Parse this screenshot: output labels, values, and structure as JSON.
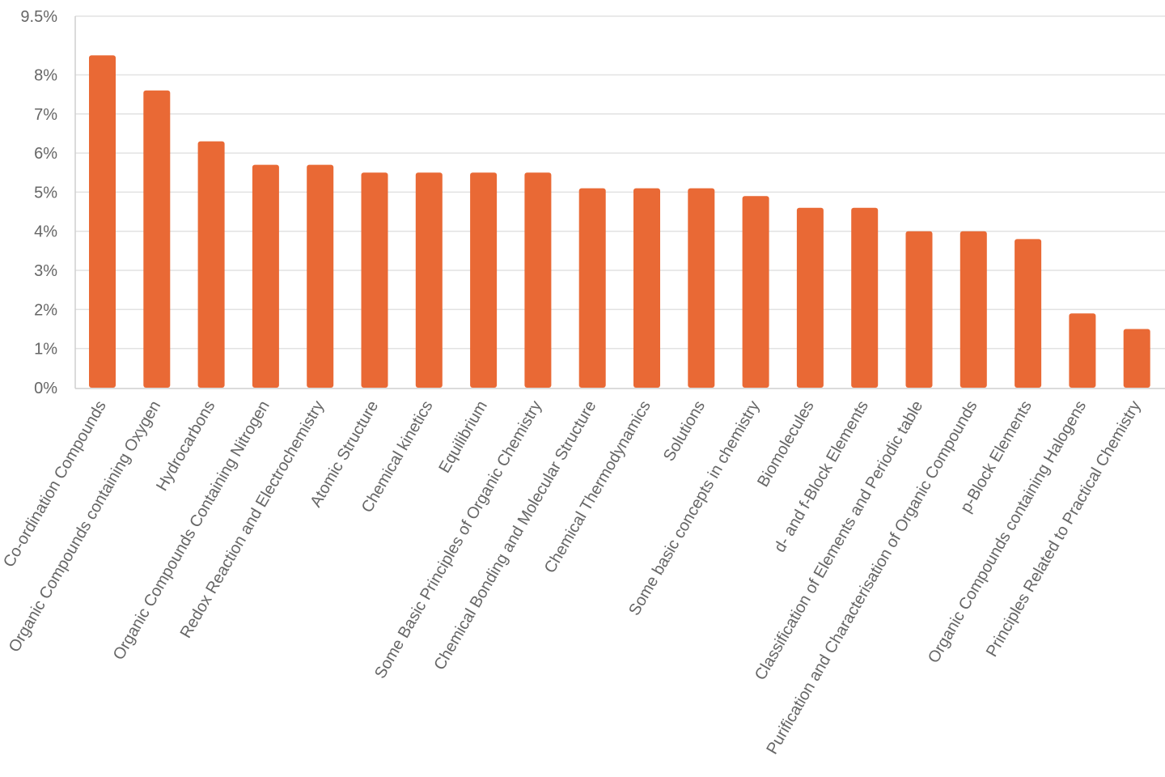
{
  "chart_data": {
    "type": "bar",
    "categories": [
      "Co-ordination Compounds",
      "Organic Compounds containing Oxygen",
      "Hydrocarbons",
      "Organic Compounds Containing Nitrogen",
      "Redox Reaction and Electrochemistry",
      "Atomic Structure",
      "Chemical kinetics",
      "Equilibrium",
      "Some Basic Principles of Organic Chemistry",
      "Chemical Bonding and Molecular Structure",
      "Chemical Thermodynamics",
      "Solutions",
      "Some basic concepts in chemistry",
      "Biomolecules",
      "d- and f-Block Elements",
      "Classification of Elements and Periodic table",
      "Purification and Characterisation of Organic Compounds",
      "p-Block Elements",
      "Organic Compounds containing Halogens",
      "Principles Related to Practical Chemistry"
    ],
    "values": [
      8.5,
      7.6,
      6.3,
      5.7,
      5.7,
      5.5,
      5.5,
      5.5,
      5.5,
      5.1,
      5.1,
      5.1,
      4.9,
      4.6,
      4.6,
      4.0,
      4.0,
      3.8,
      1.9,
      1.5
    ],
    "ylim": [
      0,
      9.5
    ],
    "y_ticks": [
      "0%",
      "1%",
      "2%",
      "3%",
      "4%",
      "5%",
      "6%",
      "7%",
      "8%",
      "9.5%"
    ],
    "y_tick_values": [
      0,
      1,
      2,
      3,
      4,
      5,
      6,
      7,
      8,
      9.5
    ],
    "title": "",
    "xlabel": "",
    "ylabel": "",
    "grid": true,
    "bar_color": "#e96935"
  }
}
